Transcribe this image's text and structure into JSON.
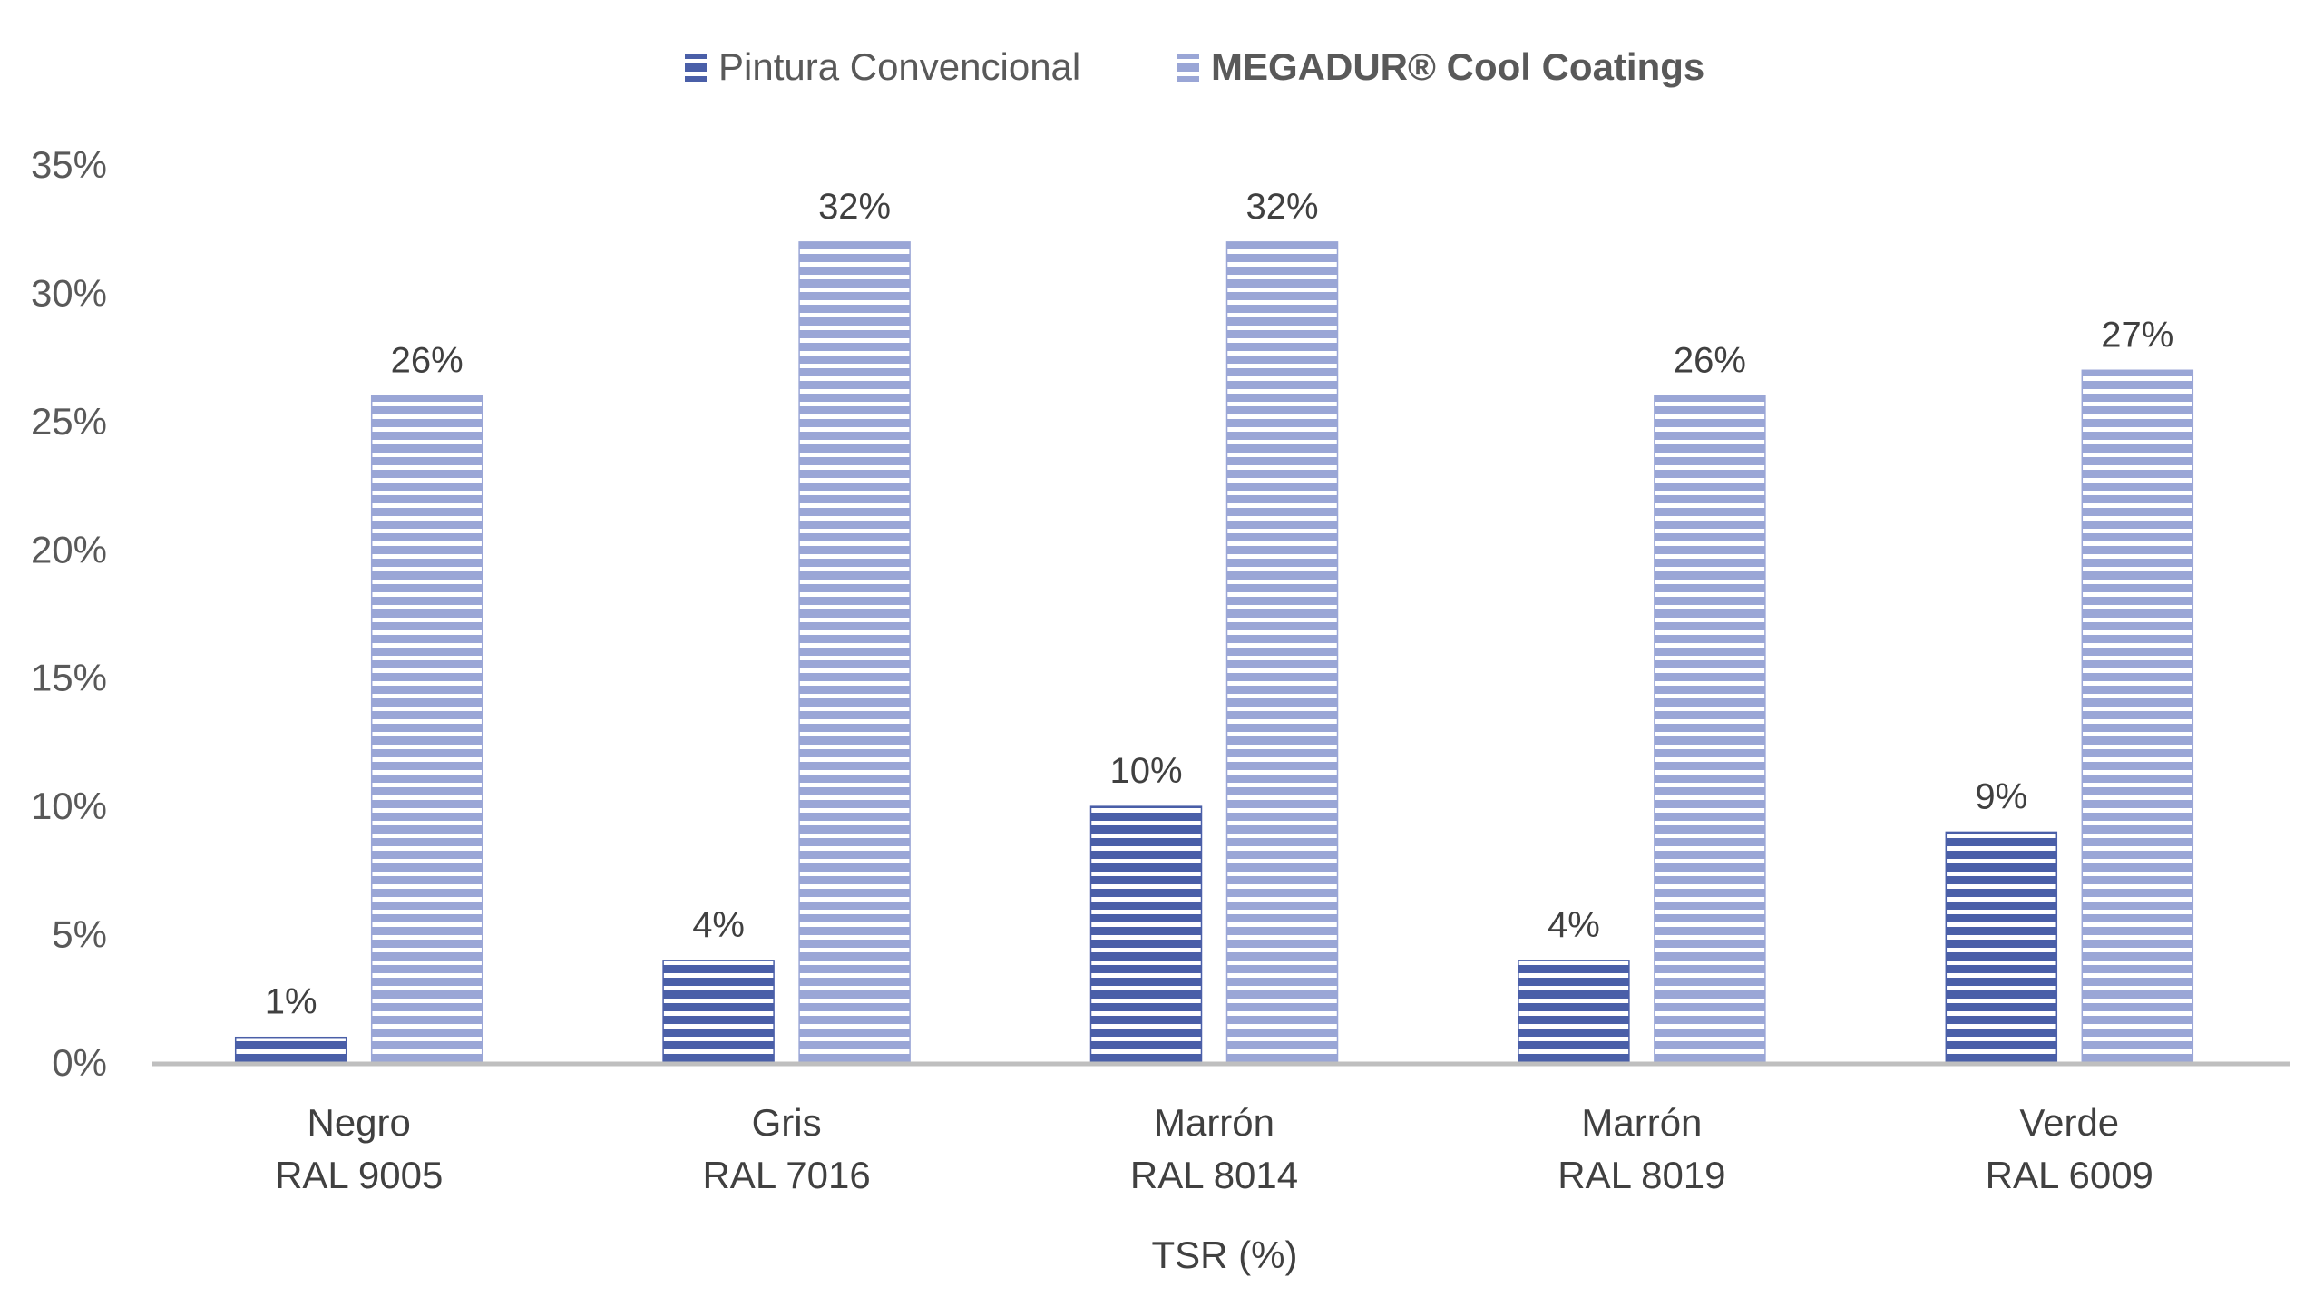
{
  "chart_data": {
    "type": "bar",
    "categories": [
      [
        "Negro",
        "RAL 9005"
      ],
      [
        "Gris",
        "RAL 7016"
      ],
      [
        "Marrón",
        "RAL 8014"
      ],
      [
        "Marrón",
        "RAL 8019"
      ],
      [
        "Verde",
        "RAL 6009"
      ]
    ],
    "series": [
      {
        "name": "Pintura Convencional",
        "values": [
          1,
          4,
          10,
          4,
          9
        ],
        "labels": [
          "1%",
          "4%",
          "10%",
          "4%",
          "9%"
        ],
        "color": "#4a5fa8"
      },
      {
        "name": "MEGADUR® Cool Coatings",
        "values": [
          26,
          32,
          32,
          26,
          27
        ],
        "labels": [
          "26%",
          "32%",
          "32%",
          "26%",
          "27%"
        ],
        "color": "#9aa6d6"
      }
    ],
    "xlabel": "TSR (%)",
    "ylabel": "",
    "ylim": [
      0,
      35
    ],
    "yticks": [
      0,
      5,
      10,
      15,
      20,
      25,
      30,
      35
    ],
    "ytick_labels": [
      "0%",
      "5%",
      "10%",
      "15%",
      "20%",
      "25%",
      "30%",
      "35%"
    ],
    "grid": false,
    "legend": "top-center"
  }
}
